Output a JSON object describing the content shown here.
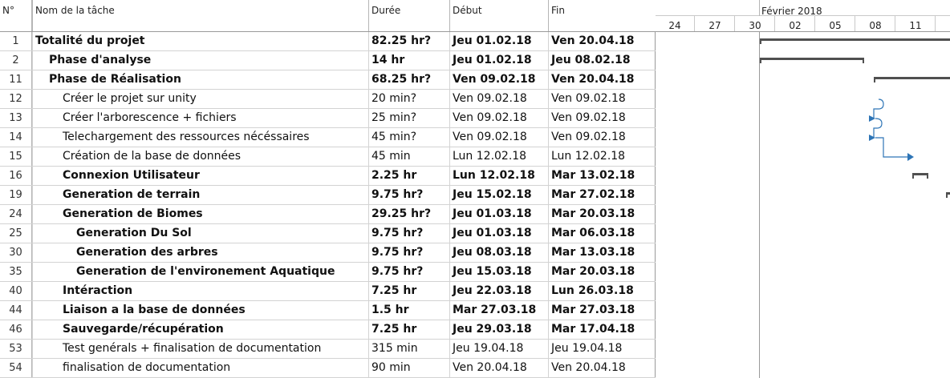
{
  "columns": {
    "id": "N°",
    "name": "Nom de la tâche",
    "duration": "Durée",
    "start": "Début",
    "end": "Fin"
  },
  "timeline": {
    "month": "Février 2018",
    "days": [
      "24",
      "27",
      "30",
      "02",
      "05",
      "08",
      "11"
    ]
  },
  "tasks": [
    {
      "id": "1",
      "name": "Totalité du projet",
      "duration": "82.25 hr?",
      "start": "Jeu 01.02.18",
      "end": "Ven 20.04.18",
      "bold": true,
      "level": 0
    },
    {
      "id": "2",
      "name": "Phase d'analyse",
      "duration": "14 hr",
      "start": "Jeu 01.02.18",
      "end": "Jeu 08.02.18",
      "bold": true,
      "level": 1
    },
    {
      "id": "11",
      "name": "Phase de Réalisation",
      "duration": "68.25 hr?",
      "start": "Ven 09.02.18",
      "end": "Ven 20.04.18",
      "bold": true,
      "level": 1
    },
    {
      "id": "12",
      "name": "Créer le projet sur unity",
      "duration": "20 min?",
      "start": "Ven 09.02.18",
      "end": "Ven 09.02.18",
      "bold": false,
      "level": 2
    },
    {
      "id": "13",
      "name": "Créer l'arborescence + fichiers",
      "duration": "25 min?",
      "start": "Ven 09.02.18",
      "end": "Ven 09.02.18",
      "bold": false,
      "level": 2
    },
    {
      "id": "14",
      "name": "Telechargement des ressources nécéssaires",
      "duration": "45 min?",
      "start": "Ven 09.02.18",
      "end": "Ven 09.02.18",
      "bold": false,
      "level": 2
    },
    {
      "id": "15",
      "name": "Création de la base de données",
      "duration": "45 min",
      "start": "Lun 12.02.18",
      "end": "Lun 12.02.18",
      "bold": false,
      "level": 2
    },
    {
      "id": "16",
      "name": "Connexion Utilisateur",
      "duration": "2.25 hr",
      "start": "Lun 12.02.18",
      "end": "Mar 13.02.18",
      "bold": true,
      "level": 2
    },
    {
      "id": "19",
      "name": "Generation de terrain",
      "duration": "9.75 hr?",
      "start": "Jeu 15.02.18",
      "end": "Mar 27.02.18",
      "bold": true,
      "level": 2
    },
    {
      "id": "24",
      "name": "Generation de Biomes",
      "duration": "29.25 hr?",
      "start": "Jeu 01.03.18",
      "end": "Mar 20.03.18",
      "bold": true,
      "level": 2
    },
    {
      "id": "25",
      "name": "Generation Du Sol",
      "duration": "9.75 hr?",
      "start": "Jeu 01.03.18",
      "end": "Mar 06.03.18",
      "bold": true,
      "level": 3
    },
    {
      "id": "30",
      "name": "Generation des arbres",
      "duration": "9.75 hr?",
      "start": "Jeu 08.03.18",
      "end": "Mar 13.03.18",
      "bold": true,
      "level": 3
    },
    {
      "id": "35",
      "name": "Generation de l'environement Aquatique",
      "duration": "9.75 hr?",
      "start": "Jeu 15.03.18",
      "end": "Mar 20.03.18",
      "bold": true,
      "level": 3
    },
    {
      "id": "40",
      "name": "Intéraction",
      "duration": "7.25 hr",
      "start": "Jeu 22.03.18",
      "end": "Lun 26.03.18",
      "bold": true,
      "level": 2
    },
    {
      "id": "44",
      "name": "Liaison a la base de données",
      "duration": "1.5 hr",
      "start": "Mar 27.03.18",
      "end": "Mar 27.03.18",
      "bold": true,
      "level": 2
    },
    {
      "id": "46",
      "name": "Sauvegarde/récupération",
      "duration": "7.25 hr",
      "start": "Jeu 29.03.18",
      "end": "Mar 17.04.18",
      "bold": true,
      "level": 2
    },
    {
      "id": "53",
      "name": "Test genérals + finalisation de documentation",
      "duration": "315 min",
      "start": "Jeu 19.04.18",
      "end": "Jeu 19.04.18",
      "bold": false,
      "level": 2
    },
    {
      "id": "54",
      "name": "finalisation de documentation",
      "duration": "90 min",
      "start": "Ven 20.04.18",
      "end": "Ven 20.04.18",
      "bold": false,
      "level": 2
    }
  ],
  "colors": {
    "summary_bar": "#505050",
    "link": "#2e75b6",
    "grid": "#d3d3d3"
  }
}
